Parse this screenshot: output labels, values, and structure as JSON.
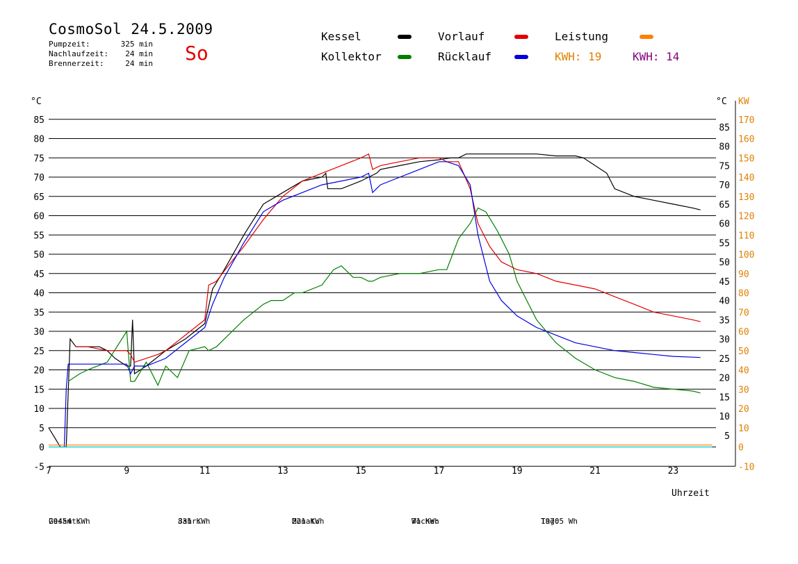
{
  "header": {
    "title": "CosmoSol 24.5.2009",
    "day": "So",
    "stats": [
      {
        "label": "Pumpzeit:",
        "value": "325 min"
      },
      {
        "label": "Nachlaufzeit:",
        "value": "24 min"
      },
      {
        "label": "Brennerzeit:",
        "value": "24 min"
      }
    ]
  },
  "legend": {
    "kessel": "Kessel",
    "kollektor": "Kollektor",
    "vorlauf": "Vorlauf",
    "ruecklauf": "Rücklauf",
    "leistung": "Leistung",
    "kwh1_label": "KWH:",
    "kwh1_value": "19",
    "kwh2_label": "KWH:",
    "kwh2_value": "14"
  },
  "colors": {
    "kessel": "#000000",
    "kollektor": "#008000",
    "vorlauf": "#e00000",
    "ruecklauf": "#0000e0",
    "leistung": "#ff8000",
    "kwh2": "#800080",
    "pump": "#00c8c8",
    "right_axis": "#e08000"
  },
  "chart_data": {
    "type": "line",
    "xlabel": "Uhrzeit",
    "ylabel_left": "°C",
    "ylabel_right_temp": "°C",
    "ylabel_right_power": "KW",
    "xlim": [
      7,
      24.5
    ],
    "ylim": [
      -5,
      88
    ],
    "grid": true,
    "x_ticks": [
      "7",
      "9",
      "11",
      "13",
      "15",
      "17",
      "19",
      "21",
      "23"
    ],
    "y_ticks_left": [
      "-5",
      "0",
      "5",
      "10",
      "15",
      "20",
      "25",
      "30",
      "35",
      "40",
      "45",
      "50",
      "55",
      "60",
      "65",
      "70",
      "75",
      "80",
      "85"
    ],
    "y_ticks_right_temp": [
      "5",
      "10",
      "15",
      "20",
      "25",
      "30",
      "35",
      "40",
      "45",
      "50",
      "55",
      "60",
      "65",
      "70",
      "75",
      "80",
      "85"
    ],
    "y_ticks_right_power": [
      "-10",
      "0",
      "10",
      "20",
      "30",
      "40",
      "50",
      "60",
      "70",
      "80",
      "90",
      "100",
      "110",
      "120",
      "130",
      "140",
      "150",
      "160",
      "170"
    ],
    "series": [
      {
        "name": "Kessel",
        "x": [
          7.0,
          7.3,
          7.45,
          7.55,
          7.7,
          8.0,
          8.3,
          8.5,
          8.7,
          9.0,
          9.1,
          9.15,
          9.2,
          9.5,
          10.0,
          10.5,
          11.0,
          11.2,
          11.5,
          12.0,
          12.5,
          13.0,
          13.5,
          14.0,
          14.1,
          14.15,
          14.3,
          14.5,
          15.0,
          15.2,
          15.4,
          15.5,
          16.0,
          16.5,
          17.0,
          17.3,
          17.5,
          17.7,
          18.0,
          18.5,
          19.0,
          19.5,
          20.0,
          20.5,
          20.7,
          21.0,
          21.3,
          21.4,
          21.5,
          22.0,
          22.5,
          23.0,
          23.5,
          23.7
        ],
        "y": [
          5,
          0,
          0,
          28,
          26,
          26,
          26,
          25,
          23,
          21,
          21,
          33,
          19,
          21,
          25,
          28,
          32,
          41,
          46,
          55,
          63,
          66,
          69,
          70,
          71,
          67,
          67,
          67,
          69,
          70,
          71,
          72,
          73,
          74,
          74.5,
          75,
          75,
          76,
          76,
          76,
          76,
          76,
          75.5,
          75.5,
          75,
          73,
          71,
          69,
          67,
          65,
          64,
          63,
          62,
          61.5
        ]
      },
      {
        "name": "Kollektor",
        "x": [
          7.0,
          7.5,
          7.8,
          8.0,
          8.5,
          9.0,
          9.1,
          9.2,
          9.5,
          9.8,
          10.0,
          10.3,
          10.6,
          11.0,
          11.1,
          11.3,
          11.6,
          12.0,
          12.5,
          12.7,
          13.0,
          13.3,
          13.5,
          14.0,
          14.3,
          14.5,
          14.6,
          14.8,
          15.0,
          15.2,
          15.3,
          15.5,
          16.0,
          16.5,
          17.0,
          17.2,
          17.5,
          17.8,
          18.0,
          18.2,
          18.5,
          18.8,
          19.0,
          19.5,
          20.0,
          20.5,
          21.0,
          21.5,
          22.0,
          22.5,
          23.0,
          23.5,
          23.7
        ],
        "y": [
          null,
          17,
          19,
          20,
          22,
          30,
          17,
          17,
          22,
          16,
          21,
          18,
          25,
          26,
          25,
          26,
          29,
          33,
          37,
          38,
          38,
          40,
          40,
          42,
          46,
          47,
          46,
          44,
          44,
          43,
          43,
          44,
          45,
          45,
          46,
          46,
          54,
          58,
          62,
          61,
          56,
          50,
          43,
          33,
          27,
          23,
          20,
          18,
          17,
          15.5,
          15,
          14.5,
          14
        ]
      },
      {
        "name": "Vorlauf",
        "x": [
          7.0,
          7.5,
          7.7,
          8.0,
          8.5,
          9.0,
          9.1,
          9.2,
          9.5,
          9.8,
          10.0,
          10.5,
          11.0,
          11.1,
          11.3,
          11.6,
          12.0,
          12.5,
          13.0,
          13.5,
          14.0,
          14.5,
          15.0,
          15.2,
          15.3,
          15.5,
          16.0,
          16.5,
          17.0,
          17.2,
          17.5,
          17.8,
          18.0,
          18.3,
          18.6,
          19.0,
          19.5,
          20.0,
          20.5,
          21.0,
          21.5,
          22.0,
          22.5,
          23.0,
          23.5,
          23.7
        ],
        "y": [
          null,
          null,
          26,
          26,
          25,
          25,
          24,
          22,
          23,
          24,
          25,
          29,
          33,
          42,
          43,
          47,
          52,
          59,
          65,
          69,
          71,
          73,
          75,
          76,
          72,
          73,
          74,
          75,
          75,
          74,
          74,
          67,
          58,
          52,
          48,
          46,
          45,
          43,
          42,
          41,
          39,
          37,
          35,
          34,
          33,
          32.5
        ]
      },
      {
        "name": "Rücklauf",
        "x": [
          7.0,
          7.4,
          7.45,
          7.5,
          8.0,
          8.5,
          9.0,
          9.1,
          9.2,
          9.5,
          10.0,
          10.5,
          11.0,
          11.2,
          11.5,
          12.0,
          12.5,
          13.0,
          13.5,
          14.0,
          14.5,
          15.0,
          15.2,
          15.3,
          15.5,
          16.0,
          16.5,
          17.0,
          17.2,
          17.5,
          17.8,
          18.0,
          18.3,
          18.6,
          19.0,
          19.5,
          20.0,
          20.5,
          21.0,
          21.5,
          22.0,
          22.5,
          23.0,
          23.5,
          23.7
        ],
        "y": [
          null,
          0,
          15,
          21.5,
          21.5,
          21.5,
          21.5,
          19,
          21,
          21,
          23,
          27,
          31,
          37,
          44,
          53,
          61,
          64,
          66,
          68,
          69,
          70,
          71,
          66,
          68,
          70,
          72,
          74,
          74,
          73,
          68,
          55,
          43,
          38,
          34,
          31,
          29,
          27,
          26,
          25,
          24.5,
          24,
          23.5,
          23.3,
          23.2
        ]
      },
      {
        "name": "Leistung",
        "x": [
          7,
          24
        ],
        "y": [
          0.5,
          0.5
        ]
      },
      {
        "name": "Pumpe",
        "x": [
          7,
          24
        ],
        "y": [
          0,
          0
        ]
      }
    ],
    "kwh": [
      {
        "label": "KWH:",
        "value": 19
      },
      {
        "label": "KWH:",
        "value": 14
      }
    ]
  },
  "footer": [
    {
      "label": "Gesamt:",
      "value": "29454 KWh"
    },
    {
      "label": "Jahr:",
      "value": "831 KWh"
    },
    {
      "label": "Monat:",
      "value": "221 KWh"
    },
    {
      "label": "Woche:",
      "value": "71 KWh"
    },
    {
      "label": "Tag:",
      "value": "19705 Wh"
    }
  ]
}
